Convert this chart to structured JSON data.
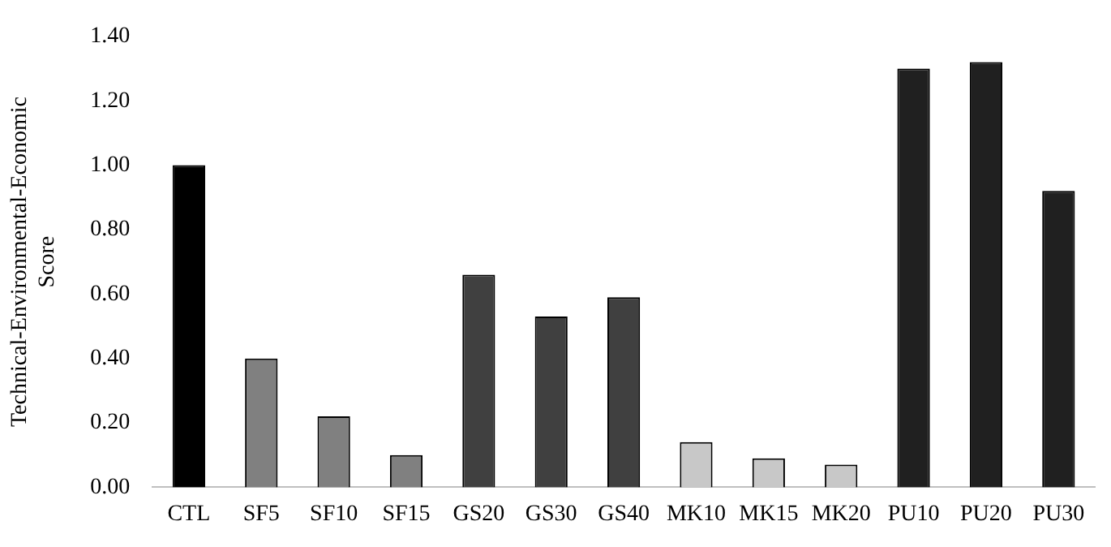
{
  "chart_data": {
    "type": "bar",
    "ylabel": "Technical-Environmental-Economic Score",
    "categories": [
      "CTL",
      "SF5",
      "SF10",
      "SF15",
      "GS20",
      "GS30",
      "GS40",
      "MK10",
      "MK15",
      "MK20",
      "PU10",
      "PU20",
      "PU30"
    ],
    "values": [
      1.0,
      0.4,
      0.22,
      0.1,
      0.66,
      0.53,
      0.59,
      0.14,
      0.09,
      0.07,
      1.3,
      1.32,
      0.92
    ],
    "colors": [
      "#000000",
      "#808080",
      "#808080",
      "#808080",
      "#404040",
      "#404040",
      "#404040",
      "#c8c8c8",
      "#c8c8c8",
      "#c8c8c8",
      "#202020",
      "#202020",
      "#202020"
    ],
    "ylim": [
      0,
      1.4
    ],
    "yticks": [
      {
        "value": 0,
        "label": "0.00"
      },
      {
        "value": 0.2,
        "label": "0.20"
      },
      {
        "value": 0.4,
        "label": "0.40"
      },
      {
        "value": 0.6,
        "label": "0.60"
      },
      {
        "value": 0.8,
        "label": "0.80"
      },
      {
        "value": 1,
        "label": "1.00"
      },
      {
        "value": 1.2,
        "label": "1.20"
      },
      {
        "value": 1.4,
        "label": "1.40"
      }
    ],
    "grid": false,
    "legend": false
  }
}
